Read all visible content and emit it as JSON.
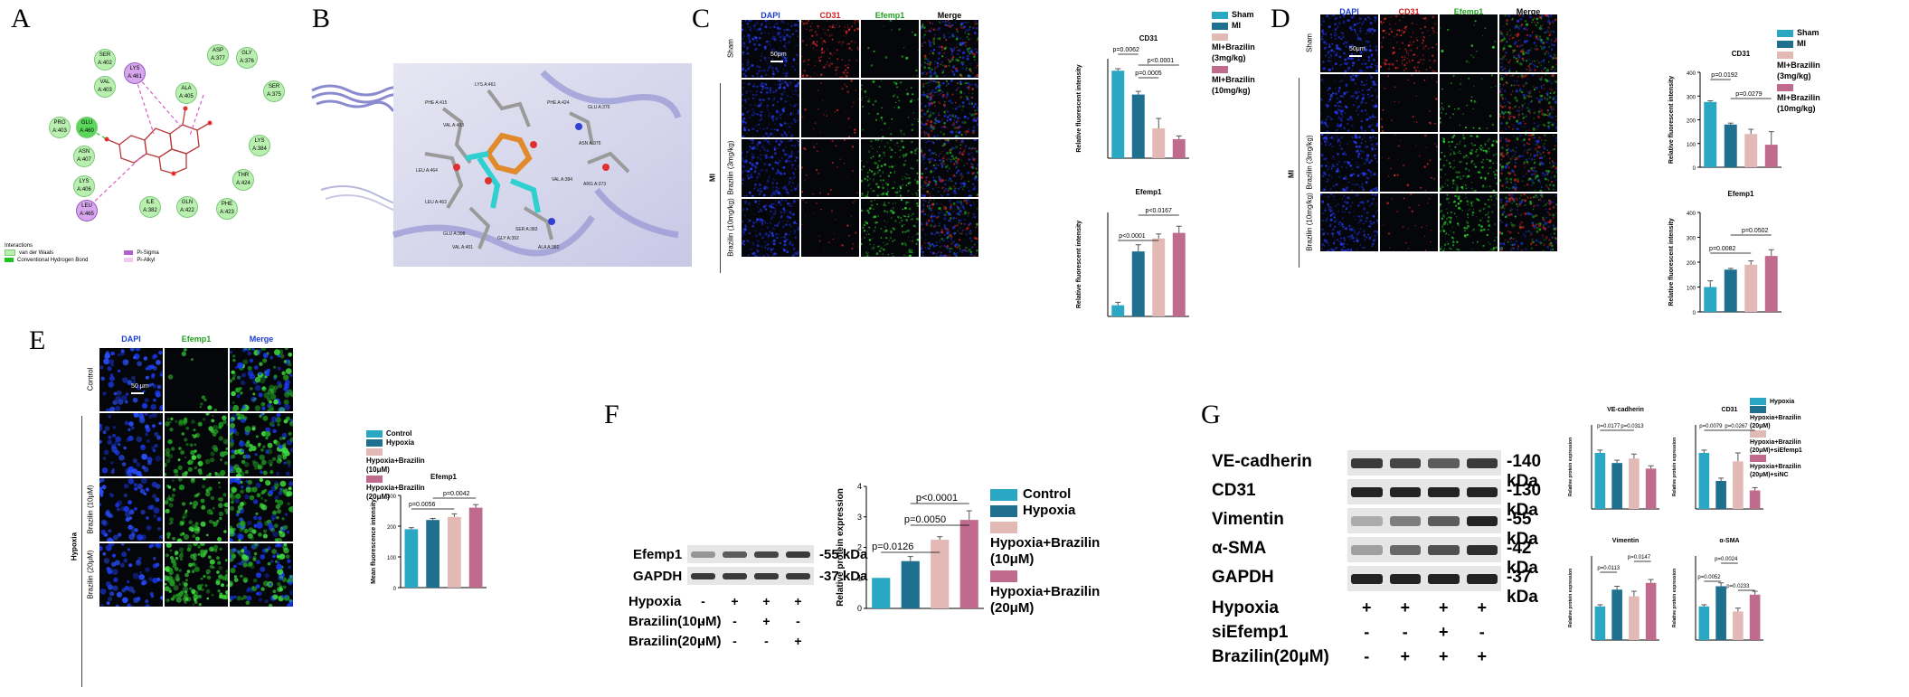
{
  "panels": [
    "A",
    "B",
    "C",
    "D",
    "E",
    "F",
    "G"
  ],
  "colors": {
    "c1": "#2aa7c3",
    "c2": "#1f6f8e",
    "c3": "#e2b9b4",
    "c4": "#c06b8e",
    "green": "#1ec51e",
    "pink": "#d85fc8"
  },
  "panelA": {
    "residues": [
      {
        "label": "SER A:402",
        "cx": 95,
        "cy": 45
      },
      {
        "label": "VAL A:403",
        "cx": 95,
        "cy": 75
      },
      {
        "label": "GLU A:460",
        "cx": 75,
        "cy": 120
      },
      {
        "label": "ASP A:377",
        "cx": 220,
        "cy": 40
      },
      {
        "label": "GLY A:376",
        "cx": 252,
        "cy": 43
      },
      {
        "label": "SER A:375",
        "cx": 282,
        "cy": 80
      },
      {
        "label": "ALA A:405",
        "cx": 185,
        "cy": 82
      },
      {
        "label": "PRO A:403",
        "cx": 45,
        "cy": 120
      },
      {
        "label": "ASN A:407",
        "cx": 72,
        "cy": 152
      },
      {
        "label": "LYS A:406",
        "cx": 72,
        "cy": 185
      },
      {
        "label": "LYS A:384",
        "cx": 266,
        "cy": 140
      },
      {
        "label": "THR A:424",
        "cx": 248,
        "cy": 178
      },
      {
        "label": "ILE A:382",
        "cx": 145,
        "cy": 208
      },
      {
        "label": "GLN A:422",
        "cx": 186,
        "cy": 208
      },
      {
        "label": "PHE A:423",
        "cx": 230,
        "cy": 210
      }
    ],
    "special": [
      {
        "label": "LYS A:461",
        "cx": 128,
        "cy": 60
      },
      {
        "label": "LEU A:465",
        "cx": 75,
        "cy": 212
      }
    ],
    "legend_title": "Interactions",
    "legend": [
      "van der Waals",
      "Conventional Hydrogen Bond",
      "Pi-Sigma",
      "Pi-Alkyl"
    ]
  },
  "panelB": {
    "labels": [
      "PHE A:415",
      "LYS A:461",
      "VAL A:403",
      "PHE A:424",
      "GLU A:376",
      "LEU A:464",
      "VAL A:384",
      "ASN A:375",
      "LEU A:463",
      "ARG A:373",
      "GLU A:398",
      "VAL A:401",
      "GLY A:392",
      "SER A:383",
      "ALA A:382"
    ]
  },
  "panelC": {
    "headers": [
      "DAPI",
      "CD31",
      "Efemp1",
      "Merge"
    ],
    "rows": [
      "Sham",
      "Brazilin (3mg/kg)",
      "Brazilin (10mg/kg)"
    ],
    "group_label": "MI",
    "scale": "50μm",
    "legend": [
      "Sham",
      "MI",
      "MI+Brazilin (3mg/kg)",
      "MI+Brazilin (10mg/kg)"
    ],
    "charts": [
      {
        "title": "CD31",
        "ylabel": "Relative fluorescent intensity",
        "values": [
          220,
          160,
          75,
          48
        ],
        "errors": [
          5,
          8,
          25,
          8
        ],
        "ylim": [
          0,
          250
        ],
        "annotations": [
          "p=0.0062",
          "p<0.0001",
          "p=0.0005"
        ]
      },
      {
        "title": "Efemp1",
        "ylabel": "Relative fluorescent intensity",
        "values": [
          30,
          175,
          210,
          225
        ],
        "errors": [
          8,
          18,
          12,
          18
        ],
        "ylim": [
          0,
          280
        ],
        "annotations": [
          "p<0.0001",
          "p<0.0167"
        ]
      }
    ]
  },
  "panelD": {
    "headers": [
      "DAPI",
      "CD31",
      "Efemp1",
      "Merge"
    ],
    "rows": [
      "Sham",
      "Brazilin (3mg/kg)",
      "Brazilin (10mg/kg)"
    ],
    "group_label": "MI",
    "scale": "50μm",
    "legend": [
      "Sham",
      "MI",
      "MI+Brazilin (3mg/kg)",
      "MI+Brazilin (10mg/kg)"
    ],
    "charts": [
      {
        "title": "CD31",
        "ylabel": "Relative fluorescent intensity",
        "values": [
          275,
          180,
          140,
          95
        ],
        "errors": [
          5,
          6,
          20,
          55
        ],
        "ylim": [
          0,
          400
        ],
        "ticks": [
          0,
          100,
          200,
          300,
          400
        ],
        "annotations": [
          "p=0.0192",
          "p=0.0279"
        ]
      },
      {
        "title": "Efemp1",
        "ylabel": "Relative fluorescent intensity",
        "values": [
          100,
          170,
          190,
          225
        ],
        "errors": [
          25,
          5,
          15,
          25
        ],
        "ylim": [
          0,
          400
        ],
        "ticks": [
          0,
          100,
          200,
          300,
          400
        ],
        "annotations": [
          "p=0.0082",
          "p=0.0502"
        ]
      }
    ]
  },
  "panelE": {
    "headers": [
      "DAPI",
      "Efemp1",
      "Merge"
    ],
    "rows": [
      "Control",
      "Brazilin (10μM)",
      "Brazilin (20μM)"
    ],
    "group_label": "Hypoxia",
    "scale": "50 μm",
    "legend": [
      "Control",
      "Hypoxia",
      "Hypoxia+Brazilin (10μM)",
      "Hypoxia+Brazilin (20μM)"
    ],
    "chart": {
      "title": "Efemp1",
      "ylabel": "Mean fluorescence intensity",
      "values": [
        190,
        220,
        230,
        260
      ],
      "errors": [
        5,
        5,
        10,
        10
      ],
      "ylim": [
        0,
        300
      ],
      "ticks": [
        0,
        100,
        200,
        300
      ],
      "annotations": [
        "p=0.0056",
        "p=0.0042"
      ]
    }
  },
  "panelF": {
    "blots": [
      {
        "name": "Efemp1",
        "kda": "-55 kDa"
      },
      {
        "name": "GAPDH",
        "kda": "-37 kDa"
      }
    ],
    "conditions": [
      {
        "name": "Hypoxia",
        "signs": [
          "-",
          "+",
          "+",
          "+"
        ]
      },
      {
        "name": "Brazilin(10μM)",
        "signs": [
          "-",
          "-",
          "+",
          "-"
        ]
      },
      {
        "name": "Brazilin(20μM)",
        "signs": [
          "-",
          "-",
          "-",
          "+"
        ]
      }
    ],
    "legend": [
      "Control",
      "Hypoxia",
      "Hypoxia+Brazilin (10μM)",
      "Hypoxia+Brazilin (20μM)"
    ],
    "chart": {
      "ylabel": "Relative protein expression",
      "values": [
        1.0,
        1.55,
        2.25,
        2.9
      ],
      "errors": [
        0,
        0.15,
        0.1,
        0.3
      ],
      "ylim": [
        0,
        4
      ],
      "ticks": [
        0,
        1,
        2,
        3,
        4
      ],
      "annotations": [
        "p=0.0126",
        "p=0.0050",
        "p<0.0001"
      ]
    }
  },
  "panelG": {
    "blots": [
      {
        "name": "VE-cadherin",
        "kda": "-140 kDa"
      },
      {
        "name": "CD31",
        "kda": "-130 kDa"
      },
      {
        "name": "Vimentin",
        "kda": "-55 kDa"
      },
      {
        "name": "α-SMA",
        "kda": "-42 kDa"
      },
      {
        "name": "GAPDH",
        "kda": "-37 kDa"
      }
    ],
    "conditions": [
      {
        "name": "Hypoxia",
        "signs": [
          "+",
          "+",
          "+",
          "+"
        ]
      },
      {
        "name": "siEfemp1",
        "signs": [
          "-",
          "-",
          "+",
          "-"
        ]
      },
      {
        "name": "Brazilin(20μM)",
        "signs": [
          "-",
          "+",
          "+",
          "+"
        ]
      }
    ],
    "legend": [
      "Hypoxia",
      "Hypoxia+Brazilin (20μM)",
      "Hypoxia+Brazilin (20μM)+siEfemp1",
      "Hypoxia+Brazilin (20μM)+siNC"
    ],
    "charts": [
      {
        "title": "VE-cadherin",
        "ylabel": "Relative protein expression",
        "values": [
          1.0,
          0.82,
          0.9,
          0.72
        ],
        "errors": [
          0.05,
          0.05,
          0.08,
          0.05
        ],
        "ylim": [
          0,
          1.5
        ],
        "annotations": [
          "p=0.0177",
          "p=0.0313"
        ]
      },
      {
        "title": "CD31",
        "ylabel": "Relative protein expression",
        "values": [
          1.0,
          0.5,
          0.85,
          0.33
        ],
        "errors": [
          0.05,
          0.05,
          0.15,
          0.05
        ],
        "ylim": [
          0,
          1.5
        ],
        "annotations": [
          "p=0.0079",
          "p=0.0267"
        ]
      },
      {
        "title": "Vimentin",
        "ylabel": "Relative protein expression",
        "values": [
          1.0,
          1.5,
          1.3,
          1.7
        ],
        "errors": [
          0.05,
          0.1,
          0.15,
          0.1
        ],
        "ylim": [
          0,
          2.5
        ],
        "annotations": [
          "p=0.0113",
          "p=0.0147"
        ]
      },
      {
        "title": "α-SMA",
        "ylabel": "Relative protein expression",
        "values": [
          1.0,
          1.6,
          0.85,
          1.35
        ],
        "errors": [
          0.05,
          0.1,
          0.1,
          0.1
        ],
        "ylim": [
          0,
          2.5
        ],
        "annotations": [
          "p=0.0052",
          "p=0.0024",
          "p=0.0233"
        ]
      }
    ]
  }
}
